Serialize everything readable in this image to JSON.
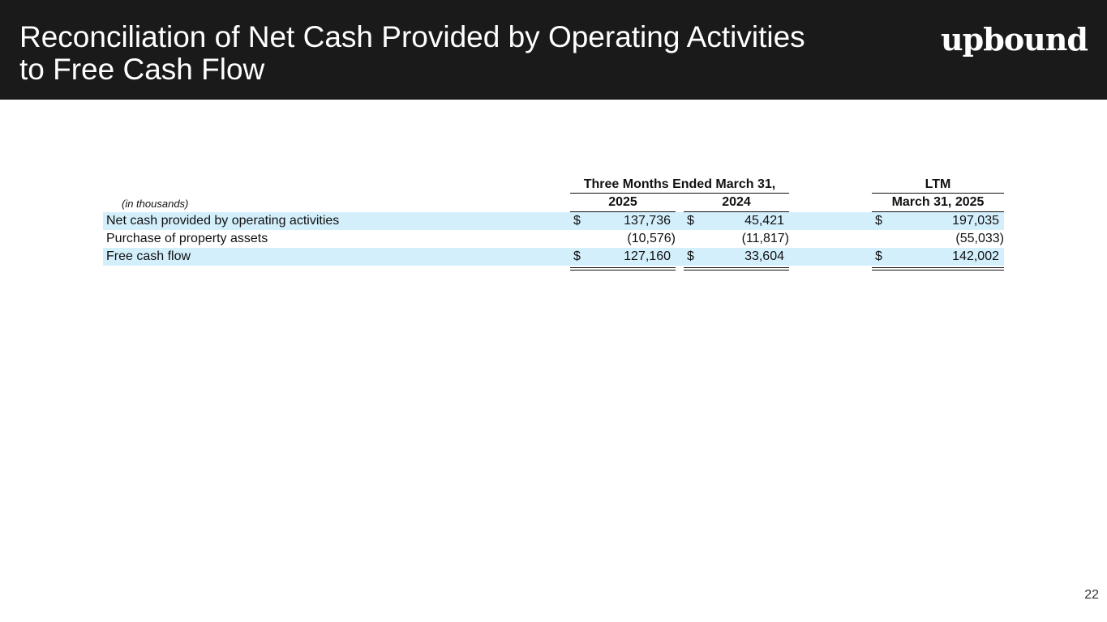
{
  "header": {
    "title_lines": [
      "Reconciliation of Net Cash Provided by Operating Activities",
      "to Free Cash Flow"
    ],
    "logo": "upbound"
  },
  "table": {
    "group_headers": [
      "Three Months Ended March 31,",
      "LTM"
    ],
    "unit_note": "(in thousands)",
    "columns": [
      "2025",
      "2024",
      "March 31, 2025"
    ],
    "rows": [
      {
        "label": "Net cash provided by operating activities",
        "cells": [
          {
            "symbol": "$",
            "value": "137,736"
          },
          {
            "symbol": "$",
            "value": "45,421"
          },
          {
            "symbol": "$",
            "value": "197,035"
          }
        ]
      },
      {
        "label": "Purchase of property assets",
        "cells": [
          {
            "value": "(10,576)"
          },
          {
            "value": "(11,817)"
          },
          {
            "value": "(55,033)"
          }
        ]
      },
      {
        "label": "Free cash flow",
        "cells": [
          {
            "symbol": "$",
            "value": "127,160"
          },
          {
            "symbol": "$",
            "value": "33,604"
          },
          {
            "symbol": "$",
            "value": "142,002"
          }
        ]
      }
    ]
  },
  "page_number": "22"
}
